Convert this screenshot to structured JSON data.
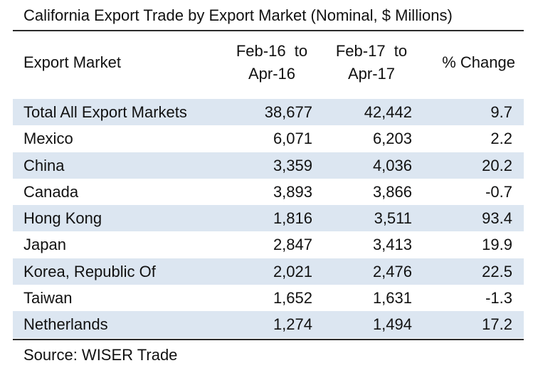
{
  "chart_data": {
    "type": "table",
    "title": "California Export Trade by Export Market (Nominal, $ Millions)",
    "columns": [
      {
        "label": "Export Market"
      },
      {
        "label_line1": "Feb-16  to",
        "label_line2": "Apr-16"
      },
      {
        "label_line1": "Feb-17  to",
        "label_line2": "Apr-17"
      },
      {
        "label": "% Change"
      }
    ],
    "rows": [
      {
        "market": "Total All Export Markets",
        "feb16_apr16": "38,677",
        "feb17_apr17": "42,442",
        "pct_change": "9.7"
      },
      {
        "market": "Mexico",
        "feb16_apr16": "6,071",
        "feb17_apr17": "6,203",
        "pct_change": "2.2"
      },
      {
        "market": "China",
        "feb16_apr16": "3,359",
        "feb17_apr17": "4,036",
        "pct_change": "20.2"
      },
      {
        "market": "Canada",
        "feb16_apr16": "3,893",
        "feb17_apr17": "3,866",
        "pct_change": "-0.7"
      },
      {
        "market": "Hong Kong",
        "feb16_apr16": "1,816",
        "feb17_apr17": "3,511",
        "pct_change": "93.4"
      },
      {
        "market": "Japan",
        "feb16_apr16": "2,847",
        "feb17_apr17": "3,413",
        "pct_change": "19.9"
      },
      {
        "market": "Korea, Republic Of",
        "feb16_apr16": "2,021",
        "feb17_apr17": "2,476",
        "pct_change": "22.5"
      },
      {
        "market": "Taiwan",
        "feb16_apr16": "1,652",
        "feb17_apr17": "1,631",
        "pct_change": "-1.3"
      },
      {
        "market": "Netherlands",
        "feb16_apr16": "1,274",
        "feb17_apr17": "1,494",
        "pct_change": "17.2"
      }
    ],
    "source": "Source: WISER Trade",
    "row_shading_color": "#dce6f1",
    "shaded_rows": "alternating, starting with first data row"
  }
}
